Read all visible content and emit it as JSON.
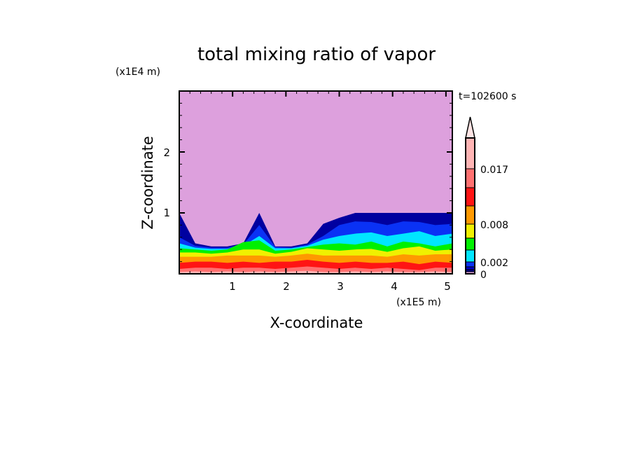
{
  "chart_data": {
    "type": "heatmap",
    "subtype": "filled-contour",
    "title": "total mixing ratio of vapor",
    "xlabel": "X-coordinate",
    "ylabel": "Z-coordinate",
    "x_unit": "(x1E5 m)",
    "y_unit": "(x1E4 m)",
    "time_label": "t=102600 s",
    "xlim": [
      0,
      5.12
    ],
    "ylim": [
      0,
      3
    ],
    "x_ticks": [
      "1",
      "2",
      "3",
      "4",
      "5"
    ],
    "y_ticks": [
      "1",
      "2"
    ],
    "background_color": "#dda0dd",
    "colorbar": {
      "labels": [
        {
          "value": 0.017,
          "text": "0.017"
        },
        {
          "value": 0.008,
          "text": "0.008"
        },
        {
          "value": 0.002,
          "text": "0.002"
        },
        {
          "value": 0,
          "text": "0"
        }
      ],
      "colors_bottom_to_top": [
        "#dda0dd",
        "#00008c",
        "#0000c8",
        "#0a32f5",
        "#00e6ff",
        "#00f000",
        "#f0f000",
        "#ff9900",
        "#ff1414",
        "#ff7070",
        "#ffb4b4"
      ],
      "extend_color": "#ffe4e4"
    },
    "profile_x": [
      0,
      0.3,
      0.6,
      0.9,
      1.2,
      1.5,
      1.8,
      2.1,
      2.4,
      2.7,
      3.0,
      3.3,
      3.6,
      3.9,
      4.2,
      4.5,
      4.8,
      5.12
    ],
    "bands": [
      {
        "color": "#0000a0",
        "top": [
          1.0,
          0.5,
          0.45,
          0.45,
          0.5,
          1.0,
          0.45,
          0.45,
          0.5,
          0.82,
          0.92,
          1.0,
          1.0,
          1.0,
          1.0,
          1.0,
          1.0,
          1.0
        ]
      },
      {
        "color": "#0a32f5",
        "top": [
          0.6,
          0.46,
          0.43,
          0.43,
          0.48,
          0.8,
          0.44,
          0.43,
          0.48,
          0.62,
          0.8,
          0.86,
          0.85,
          0.8,
          0.86,
          0.85,
          0.8,
          0.82
        ]
      },
      {
        "color": "#00e6ff",
        "top": [
          0.5,
          0.43,
          0.41,
          0.41,
          0.46,
          0.62,
          0.42,
          0.42,
          0.46,
          0.56,
          0.62,
          0.66,
          0.68,
          0.62,
          0.66,
          0.7,
          0.62,
          0.66
        ]
      },
      {
        "color": "#00f000",
        "top": [
          0.42,
          0.4,
          0.38,
          0.4,
          0.52,
          0.55,
          0.38,
          0.4,
          0.44,
          0.48,
          0.5,
          0.48,
          0.53,
          0.45,
          0.53,
          0.5,
          0.45,
          0.5
        ]
      },
      {
        "color": "#f0f000",
        "top": [
          0.35,
          0.35,
          0.33,
          0.35,
          0.4,
          0.4,
          0.33,
          0.36,
          0.42,
          0.4,
          0.38,
          0.4,
          0.41,
          0.36,
          0.42,
          0.45,
          0.38,
          0.4
        ]
      },
      {
        "color": "#ff9900",
        "top": [
          0.28,
          0.28,
          0.28,
          0.3,
          0.3,
          0.3,
          0.28,
          0.3,
          0.33,
          0.3,
          0.3,
          0.3,
          0.3,
          0.28,
          0.32,
          0.3,
          0.32,
          0.32
        ]
      },
      {
        "color": "#ff1414",
        "top": [
          0.18,
          0.2,
          0.2,
          0.18,
          0.2,
          0.18,
          0.2,
          0.2,
          0.23,
          0.2,
          0.18,
          0.2,
          0.18,
          0.18,
          0.2,
          0.16,
          0.2,
          0.18
        ]
      },
      {
        "color": "#ff7070",
        "top": [
          0.08,
          0.1,
          0.1,
          0.08,
          0.1,
          0.1,
          0.08,
          0.1,
          0.12,
          0.1,
          0.08,
          0.1,
          0.08,
          0.1,
          0.08,
          0.06,
          0.1,
          0.1
        ]
      },
      {
        "color": "#ffb4b4",
        "top": [
          0.03,
          0.04,
          0.03,
          0.04,
          0.03,
          0.04,
          0.03,
          0.04,
          0.05,
          0.03,
          0.03,
          0.04,
          0.03,
          0.04,
          0.03,
          0.03,
          0.04,
          0.03
        ]
      }
    ]
  }
}
